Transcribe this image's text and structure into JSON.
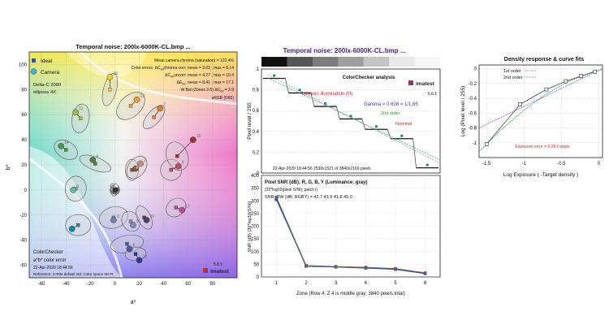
{
  "chart_data": [
    {
      "type": "scatter",
      "title": "Temporal noise: 200lx-6000K-CL.bmp ...",
      "xlabel": "a*",
      "ylabel": "b*",
      "xlim": [
        -70,
        100
      ],
      "ylim": [
        -70,
        110
      ],
      "xticks": [
        -60,
        -40,
        -20,
        0,
        20,
        40,
        60,
        80
      ],
      "yticks": [
        -60,
        -40,
        -20,
        0,
        20,
        40,
        60,
        80,
        100
      ],
      "grid": true,
      "legend": {
        "position": "top-left",
        "entries": [
          "Ideal",
          "Camera"
        ]
      },
      "stats": [
        "Mean camera chroma (saturation) = 122.4%",
        "Color errors:  ΔC",
        "chroma corr:  mean = 3.03 ;  max = 8.14",
        "ΔC",
        "uncorr:  mean = 4.27 ;  max = 10.4",
        "ΔE",
        ":   mean = 8.41 ;  max = 17.1",
        "W Bal (Zones 2-5) ΔC",
        " = 2.9",
        "sRGB (D65)"
      ],
      "sub00": "00",
      "annotations": [
        "Delta-C 2000",
        "ellipses 4X"
      ],
      "footer": [
        "ColorChecker",
        "a*b* color error",
        "22-Apr-2020 18:44:56",
        "Reference: X-Rite default std. Color space Wt Pt"
      ],
      "version": "5.0.1",
      "brand": "imatest",
      "patches": [
        {
          "n": "1",
          "ideal": [
            14,
            16
          ],
          "camera": [
            17,
            17
          ],
          "color": "#8a5a44"
        },
        {
          "n": "2",
          "ideal": [
            18,
            18
          ],
          "camera": [
            21,
            21
          ],
          "color": "#c58e78"
        },
        {
          "n": "3",
          "ideal": [
            -1,
            -22
          ],
          "camera": [
            -1,
            -24
          ],
          "color": "#6a86b0"
        },
        {
          "n": "4",
          "ideal": [
            -16,
            21
          ],
          "camera": [
            -18,
            24
          ],
          "color": "#5b7a3c"
        },
        {
          "n": "5",
          "ideal": [
            13,
            -25
          ],
          "camera": [
            15,
            -28
          ],
          "color": "#8487b8"
        },
        {
          "n": "6",
          "ideal": [
            -32,
            1
          ],
          "camera": [
            -34,
            0
          ],
          "color": "#62bba8"
        },
        {
          "n": "7",
          "ideal": [
            32,
            58
          ],
          "camera": [
            37,
            65
          ],
          "color": "#e0812a"
        },
        {
          "n": "8",
          "ideal": [
            10,
            -43
          ],
          "camera": [
            12,
            -47
          ],
          "color": "#4a5aa8"
        },
        {
          "n": "9",
          "ideal": [
            46,
            16
          ],
          "camera": [
            52,
            19
          ],
          "color": "#c54a5a"
        },
        {
          "n": "10",
          "ideal": [
            24,
            -22
          ],
          "camera": [
            26,
            -24
          ],
          "color": "#5a3a6a"
        },
        {
          "n": "11",
          "ideal": [
            -28,
            57
          ],
          "camera": [
            -32,
            62
          ],
          "color": "#9dbd3f"
        },
        {
          "n": "12",
          "ideal": [
            13,
            67
          ],
          "camera": [
            18,
            72
          ],
          "color": "#e8a030"
        },
        {
          "n": "13",
          "ideal": [
            17,
            -51
          ],
          "camera": [
            20,
            -56
          ],
          "color": "#2c3c90"
        },
        {
          "n": "14",
          "ideal": [
            -40,
            32
          ],
          "camera": [
            -44,
            35
          ],
          "color": "#469a4a"
        },
        {
          "n": "15",
          "ideal": [
            51,
            27
          ],
          "camera": [
            64,
            40
          ],
          "color": "#b02a30"
        },
        {
          "n": "16",
          "ideal": [
            -4,
            80
          ],
          "camera": [
            -4,
            90
          ],
          "color": "#f0d02a"
        },
        {
          "n": "17",
          "ideal": [
            50,
            -14
          ],
          "camera": [
            55,
            -16
          ],
          "color": "#bc4c92"
        },
        {
          "n": "18",
          "ideal": [
            -30,
            -28
          ],
          "camera": [
            -35,
            -31
          ],
          "color": "#0a88a8"
        },
        {
          "n": "19",
          "ideal": [
            0,
            2
          ],
          "camera": [
            1,
            3
          ],
          "color": "#f2f2f2"
        },
        {
          "n": "20",
          "ideal": [
            0,
            0
          ],
          "camera": [
            0,
            1
          ],
          "color": "#c8c8c8"
        },
        {
          "n": "21",
          "ideal": [
            0,
            -1
          ],
          "camera": [
            0,
            0
          ],
          "color": "#a0a0a0"
        },
        {
          "n": "22",
          "ideal": [
            0,
            0
          ],
          "camera": [
            0,
            -1
          ],
          "color": "#7a7a7a"
        },
        {
          "n": "23",
          "ideal": [
            0,
            0
          ],
          "camera": [
            0,
            0
          ],
          "color": "#555555"
        },
        {
          "n": "24",
          "ideal": [
            0,
            0
          ],
          "camera": [
            1,
            0
          ],
          "color": "#333333"
        }
      ]
    },
    {
      "type": "line",
      "title": "Temporal noise: 200lx-6000K-CL.bmp ...",
      "subtitle": "ColorChecker analysis",
      "xlabel": "",
      "ylabel": "Pixel level / 255",
      "ylim": [
        0,
        1
      ],
      "yticks": [
        0,
        0.2,
        0.4,
        0.6,
        0.8,
        1
      ],
      "steps": [
        0.91,
        0.77,
        0.64,
        0.52,
        0.42,
        0.33,
        0.05
      ],
      "strip_grays": [
        "#111111",
        "#555555",
        "#7c7c7c",
        "#9e9e9e",
        "#c4c4c4",
        "#e8e8e8",
        "#f6f6f6"
      ],
      "annotations": {
        "illum": "Uneven illumination (H)",
        "gamma": "Gamma = 0.608 = 1/1.65",
        "second": "2nd order",
        "nominal": "Nominal",
        "version": "5.0.1",
        "brand": "imatest",
        "footer": "22-Apr-2020 18:44:56    2530x1521 of 3840x2160 pixels"
      }
    },
    {
      "type": "line",
      "title": "Pixel SNR (dB); R, G, B, Y (Luminance; gray)",
      "subtitle": "(20*log10(pixel S/Ni); patch i)",
      "legend_line": "SNR_BW (dB; RGBY) = 42.7 43.9 41.8 45.0",
      "xlabel": "Zone  (Row 4;  Z 4 is middle gray;  3840 pixels total)",
      "ylabel": "SNR (dB) (20*log10(S/N))",
      "categories": [
        1,
        2,
        3,
        4,
        5,
        6
      ],
      "xlim": [
        0.5,
        6.5
      ],
      "ylim": [
        0,
        400
      ],
      "yticks": [
        0,
        50,
        100,
        150,
        200,
        250,
        300,
        350,
        400
      ],
      "series": [
        {
          "name": "R",
          "color": "#e02020",
          "values": [
            310,
            45,
            41,
            38,
            33,
            16
          ]
        },
        {
          "name": "G",
          "color": "#20a020",
          "values": [
            314,
            42,
            40,
            36,
            31,
            14
          ]
        },
        {
          "name": "B",
          "color": "#2040e0",
          "values": [
            305,
            43,
            39,
            35,
            30,
            13
          ]
        },
        {
          "name": "Y",
          "color": "#606060",
          "values": [
            312,
            44,
            40,
            37,
            32,
            15
          ]
        }
      ]
    },
    {
      "type": "line",
      "title": "Density response & curve fits",
      "xlabel": "Log Exposure  ( -Target density )",
      "ylabel": "Log (Pixel level / 255)",
      "xlim": [
        -1.6,
        0.05
      ],
      "ylim": [
        -1.2,
        0.05
      ],
      "xticks": [
        -1.5,
        -1,
        -0.5,
        0
      ],
      "yticks": [
        -1,
        -0.8,
        -0.6,
        -0.4,
        -0.2,
        0
      ],
      "legend": {
        "position": "top-left",
        "entries": [
          "1st order",
          "2nd order"
        ]
      },
      "points": [
        [
          -1.5,
          -1.02
        ],
        [
          -1.05,
          -0.48
        ],
        [
          -0.7,
          -0.28
        ],
        [
          -0.44,
          -0.17
        ],
        [
          -0.24,
          -0.1
        ],
        [
          -0.05,
          -0.04
        ]
      ],
      "fit1": [
        [
          -1.6,
          -0.8
        ],
        [
          0.05,
          0.0
        ]
      ],
      "fit2": [
        [
          -1.6,
          -1.12
        ],
        [
          -1.3,
          -0.82
        ],
        [
          -1.0,
          -0.56
        ],
        [
          -0.7,
          -0.34
        ],
        [
          -0.4,
          -0.17
        ],
        [
          -0.1,
          -0.05
        ],
        [
          0.05,
          -0.01
        ]
      ],
      "annotation": "Exposure error = 0.26 f-stops"
    }
  ]
}
